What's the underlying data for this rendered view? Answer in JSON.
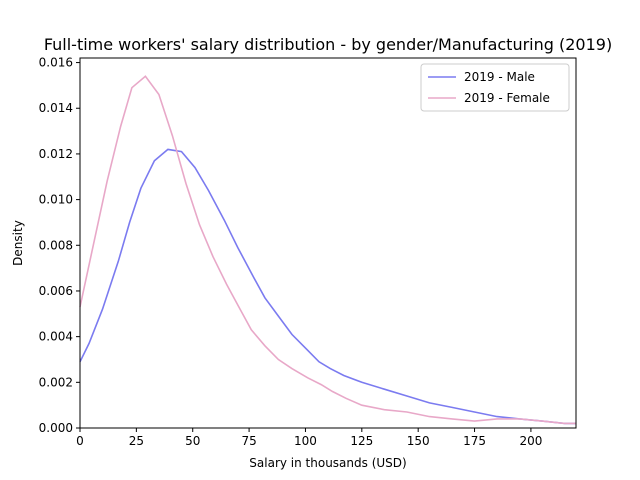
{
  "chart_data": {
    "type": "line",
    "title": "Full-time workers' salary distribution - by gender/Manufacturing (2019)",
    "xlabel": "Salary in thousands (USD)",
    "ylabel": "Density",
    "xlim": [
      0,
      220
    ],
    "ylim": [
      0,
      0.0162
    ],
    "xticks": [
      "0",
      "25",
      "50",
      "75",
      "100",
      "125",
      "150",
      "175",
      "200"
    ],
    "xtick_values": [
      0,
      25,
      50,
      75,
      100,
      125,
      150,
      175,
      200
    ],
    "yticks": [
      "0.000",
      "0.002",
      "0.004",
      "0.006",
      "0.008",
      "0.010",
      "0.012",
      "0.014",
      "0.016"
    ],
    "ytick_values": [
      0,
      0.002,
      0.004,
      0.006,
      0.008,
      0.01,
      0.012,
      0.014,
      0.016
    ],
    "grid": false,
    "legend": "top-right",
    "series": [
      {
        "name": "2019 - Male",
        "color": "#7b7bf0",
        "x": [
          0,
          4,
          10,
          17,
          22,
          27,
          33,
          39,
          45,
          51,
          57,
          64,
          70,
          77,
          82,
          88,
          94,
          101,
          106,
          111,
          117,
          125,
          135,
          145,
          155,
          165,
          175,
          185,
          195,
          205,
          215,
          220
        ],
        "y": [
          0.0029,
          0.0037,
          0.0052,
          0.0073,
          0.009,
          0.0105,
          0.0117,
          0.0122,
          0.0121,
          0.0114,
          0.0104,
          0.0091,
          0.0079,
          0.0066,
          0.0057,
          0.0049,
          0.0041,
          0.0034,
          0.0029,
          0.0026,
          0.0023,
          0.002,
          0.0017,
          0.0014,
          0.0011,
          0.0009,
          0.0007,
          0.0005,
          0.0004,
          0.0003,
          0.0002,
          0.0002
        ]
      },
      {
        "name": "2019 - Female",
        "color": "#e8a8c8",
        "x": [
          0,
          5,
          12,
          18,
          23,
          29,
          35,
          41,
          47,
          53,
          59,
          65,
          71,
          76,
          82,
          88,
          94,
          101,
          107,
          112,
          118,
          125,
          135,
          145,
          155,
          165,
          175,
          185,
          195,
          205,
          215,
          220
        ],
        "y": [
          0.0053,
          0.0076,
          0.0108,
          0.0132,
          0.0149,
          0.0154,
          0.0146,
          0.0128,
          0.0107,
          0.0089,
          0.0075,
          0.0063,
          0.0052,
          0.0043,
          0.0036,
          0.003,
          0.0026,
          0.0022,
          0.0019,
          0.0016,
          0.0013,
          0.001,
          0.0008,
          0.0007,
          0.0005,
          0.0004,
          0.0003,
          0.0004,
          0.0004,
          0.0003,
          0.0002,
          0.0002
        ]
      }
    ]
  }
}
